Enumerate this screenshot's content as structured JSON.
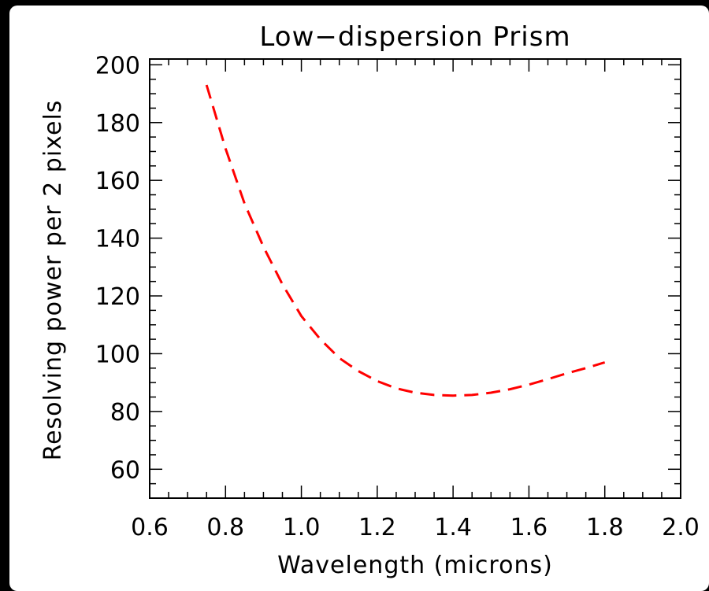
{
  "chart_data": {
    "type": "line",
    "title": "Low−dispersion Prism",
    "xlabel": "Wavelength (microns)",
    "ylabel": "Resolving power per 2 pixels",
    "xlim": [
      0.6,
      2.0
    ],
    "ylim": [
      50,
      202
    ],
    "x_ticks": [
      0.6,
      0.8,
      1.0,
      1.2,
      1.4,
      1.6,
      1.8,
      2.0
    ],
    "x_tick_labels": [
      "0.6",
      "0.8",
      "1.0",
      "1.2",
      "1.4",
      "1.6",
      "1.8",
      "2.0"
    ],
    "y_ticks": [
      60,
      80,
      100,
      120,
      140,
      160,
      180,
      200
    ],
    "y_tick_labels": [
      "60",
      "80",
      "100",
      "120",
      "140",
      "160",
      "180",
      "200"
    ],
    "x_minor_step": 0.05,
    "y_minor_step": 5,
    "grid": false,
    "series": [
      {
        "color": "#ff0000",
        "line_style": "dashed",
        "x": [
          0.75,
          0.8,
          0.85,
          0.9,
          0.95,
          1.0,
          1.05,
          1.1,
          1.15,
          1.2,
          1.25,
          1.3,
          1.35,
          1.4,
          1.45,
          1.5,
          1.55,
          1.6,
          1.65,
          1.7,
          1.75,
          1.8
        ],
        "y": [
          193,
          171,
          152,
          137,
          124,
          113,
          105,
          98.5,
          94,
          90.5,
          88,
          86.5,
          85.7,
          85.5,
          85.7,
          86.5,
          87.7,
          89.3,
          91.2,
          93.2,
          95,
          97
        ]
      }
    ]
  }
}
